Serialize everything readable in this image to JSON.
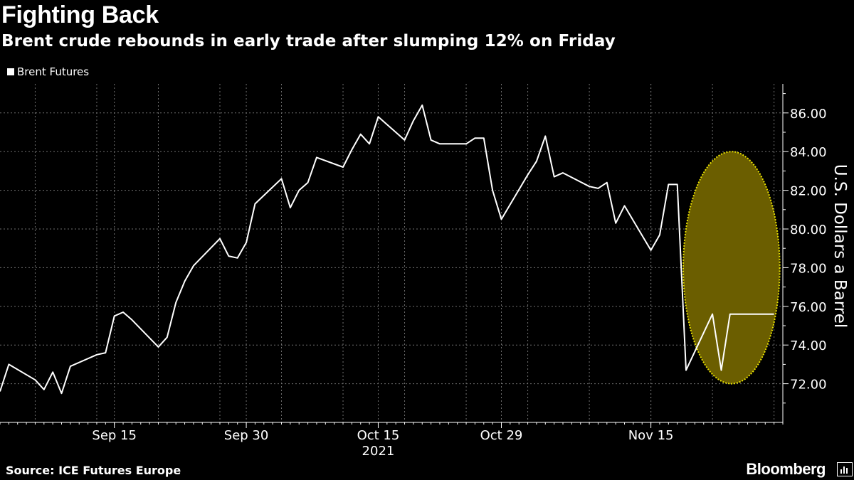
{
  "header": {
    "title": "Fighting Back",
    "subtitle": "Brent crude rebounds in early trade after slumping 12% on Friday"
  },
  "footer": {
    "source": "Source: ICE Futures Europe",
    "brand": "Bloomberg"
  },
  "colors": {
    "background": "#000000",
    "line": "#ffffff",
    "highlight_fill": "#6b5e00",
    "highlight_stroke": "#e8e000"
  },
  "chart_data": {
    "type": "line",
    "legend": [
      "Brent Futures"
    ],
    "legend_position": "top-left",
    "ylabel": "U.S. Dollars a Barrel",
    "y_axis_position": "right",
    "ylim": [
      70.0,
      87.5
    ],
    "yticks": [
      "72.00",
      "74.00",
      "76.00",
      "78.00",
      "80.00",
      "82.00",
      "84.00",
      "86.00"
    ],
    "grid": true,
    "xlim": [
      "2021-09-02",
      "2021-11-30"
    ],
    "xticks": [
      {
        "date": "2021-09-15",
        "label": "Sep 15"
      },
      {
        "date": "2021-09-30",
        "label": "Sep 30"
      },
      {
        "date": "2021-10-15",
        "label": "Oct 15"
      },
      {
        "date": "2021-10-29",
        "label": "Oct 29"
      },
      {
        "date": "2021-11-15",
        "label": "Nov 15"
      }
    ],
    "year_label": "2021",
    "series": [
      {
        "name": "Brent Futures",
        "x": [
          "2021-09-02",
          "2021-09-03",
          "2021-09-06",
          "2021-09-07",
          "2021-09-08",
          "2021-09-09",
          "2021-09-10",
          "2021-09-13",
          "2021-09-14",
          "2021-09-15",
          "2021-09-16",
          "2021-09-17",
          "2021-09-20",
          "2021-09-21",
          "2021-09-22",
          "2021-09-23",
          "2021-09-24",
          "2021-09-27",
          "2021-09-28",
          "2021-09-29",
          "2021-09-30",
          "2021-10-01",
          "2021-10-04",
          "2021-10-05",
          "2021-10-06",
          "2021-10-07",
          "2021-10-08",
          "2021-10-11",
          "2021-10-12",
          "2021-10-13",
          "2021-10-14",
          "2021-10-15",
          "2021-10-18",
          "2021-10-19",
          "2021-10-20",
          "2021-10-21",
          "2021-10-22",
          "2021-10-25",
          "2021-10-26",
          "2021-10-27",
          "2021-10-28",
          "2021-10-29",
          "2021-11-01",
          "2021-11-02",
          "2021-11-03",
          "2021-11-04",
          "2021-11-05",
          "2021-11-08",
          "2021-11-09",
          "2021-11-10",
          "2021-11-11",
          "2021-11-12",
          "2021-11-15",
          "2021-11-16",
          "2021-11-17",
          "2021-11-18",
          "2021-11-19",
          "2021-11-22",
          "2021-11-23",
          "2021-11-24",
          "2021-11-25",
          "2021-11-26",
          "2021-11-29"
        ],
        "values": [
          71.6,
          73.0,
          72.2,
          71.7,
          72.6,
          71.5,
          72.9,
          73.5,
          73.6,
          75.5,
          75.7,
          75.3,
          73.9,
          74.4,
          76.2,
          77.3,
          78.1,
          79.5,
          78.6,
          78.5,
          79.3,
          81.3,
          82.6,
          81.1,
          82.0,
          82.4,
          83.7,
          83.2,
          84.1,
          84.9,
          84.4,
          85.8,
          84.6,
          85.6,
          86.4,
          84.6,
          84.4,
          84.4,
          84.7,
          84.7,
          82.0,
          80.5,
          82.8,
          83.5,
          84.8,
          82.7,
          82.9,
          82.2,
          82.1,
          82.4,
          80.3,
          81.2,
          78.9,
          79.7,
          82.3,
          82.3,
          72.7,
          75.6,
          72.7,
          75.6,
          75.6,
          75.6,
          75.6
        ]
      }
    ],
    "annotations": [
      {
        "type": "ellipse-highlight",
        "from": "2021-11-19",
        "to": "2021-11-29",
        "ylim": [
          72.0,
          84.0
        ]
      }
    ]
  }
}
